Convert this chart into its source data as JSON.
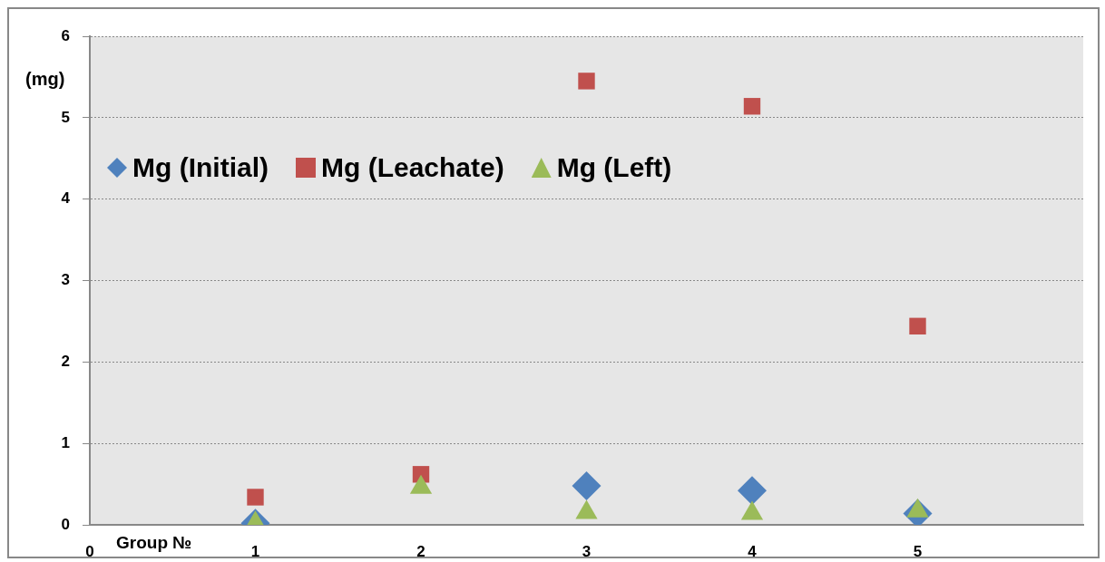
{
  "chart_data": {
    "type": "scatter",
    "xlabel": "Group №",
    "ylabel": "(mg)",
    "x": [
      1,
      2,
      3,
      4,
      5
    ],
    "series": [
      {
        "name": "Mg (Initial)",
        "color": "#4f81bd",
        "marker": "diamond",
        "values": [
          0.02,
          null,
          0.48,
          0.42,
          0.14
        ]
      },
      {
        "name": "Mg (Leachate)",
        "color": "#c0504d",
        "marker": "square",
        "values": [
          0.34,
          0.62,
          5.45,
          5.14,
          2.44
        ]
      },
      {
        "name": "Mg (Left)",
        "color": "#9bbb59",
        "marker": "triangle",
        "values": [
          0.02,
          0.46,
          0.15,
          0.14,
          0.17
        ]
      }
    ],
    "xlim": [
      0,
      6
    ],
    "xticks": [
      0,
      1,
      2,
      3,
      4,
      5
    ],
    "ylim": [
      0,
      6
    ],
    "yticks": [
      0,
      1,
      2,
      3,
      4,
      5,
      6
    ],
    "grid": "y",
    "legend": "top left"
  }
}
